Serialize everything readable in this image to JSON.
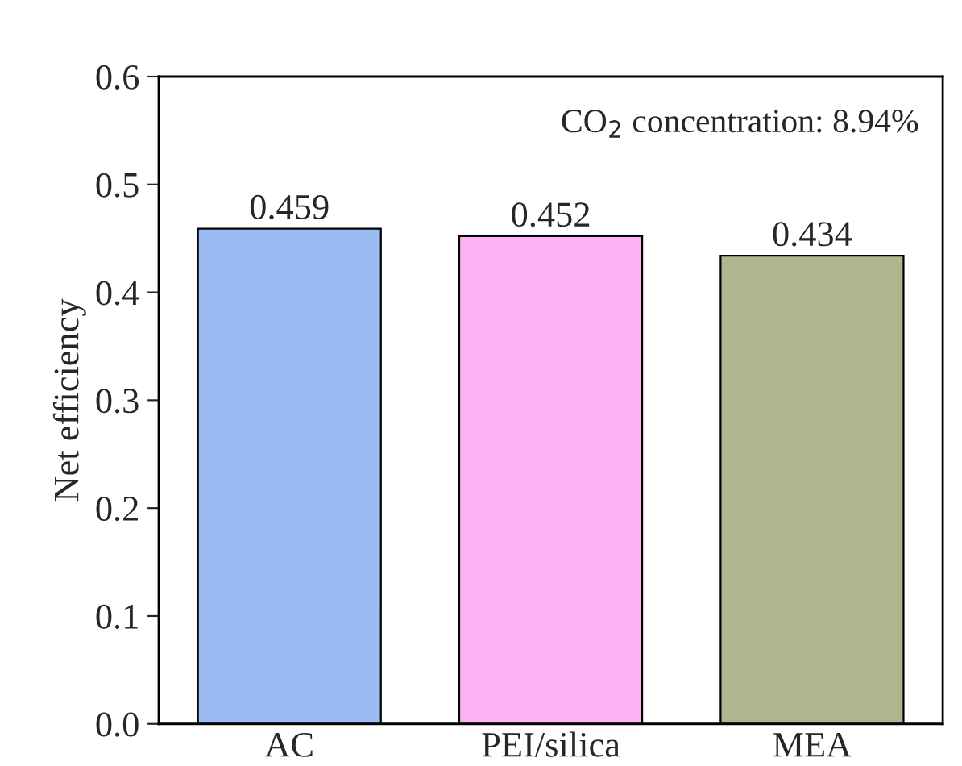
{
  "chart_data": {
    "type": "bar",
    "ylabel": "Net efficiency",
    "categories": [
      "AC",
      "PEI/silica",
      "MEA"
    ],
    "values": [
      0.459,
      0.452,
      0.434
    ],
    "colors": [
      "#9dbbf3",
      "#fcb3f5",
      "#b0b58f"
    ],
    "ylim": [
      0,
      0.6
    ],
    "yticks": [
      {
        "value": 0,
        "label": "0.0"
      },
      0.1,
      0.2,
      0.3,
      0.4,
      0.5,
      0.6
    ],
    "data_labels": true,
    "grid": false,
    "annotations": [
      "CO$_{2}$ concentration: 8.94%"
    ]
  }
}
